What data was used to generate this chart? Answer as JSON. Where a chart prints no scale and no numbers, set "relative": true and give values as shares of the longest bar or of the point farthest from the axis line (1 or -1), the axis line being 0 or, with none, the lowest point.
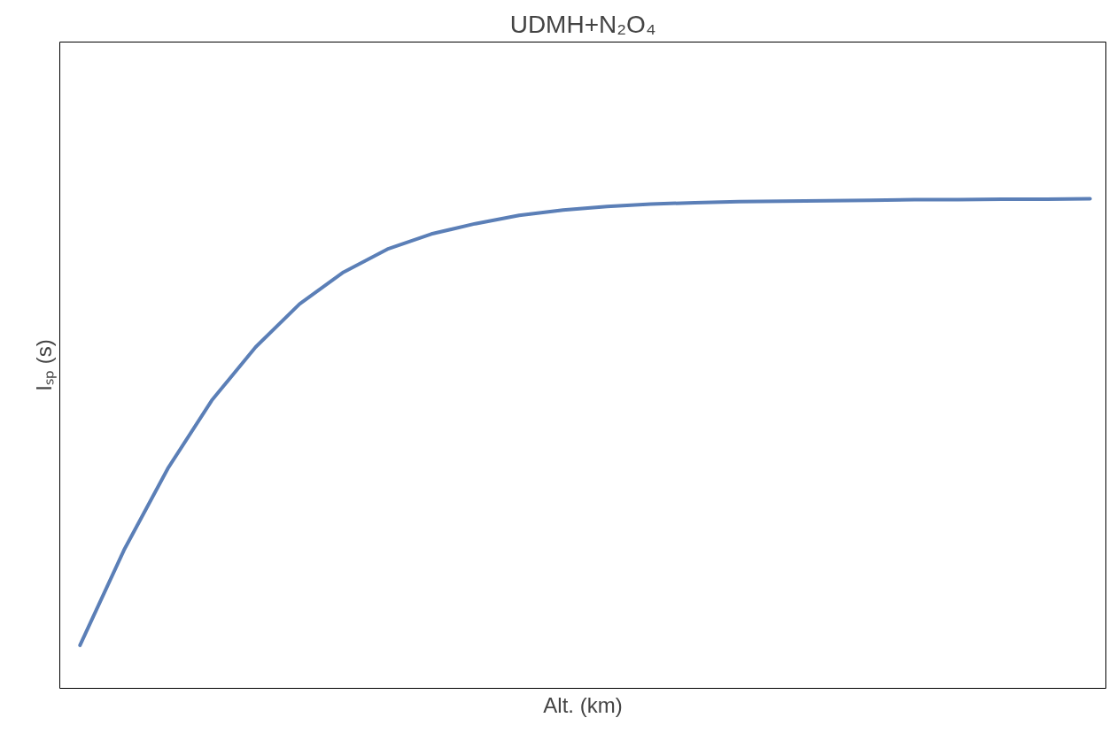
{
  "chart_data": {
    "type": "line",
    "title": "UDMH+N₂O₄",
    "xlabel": "Alt. (km)",
    "ylabel": "Iₛₚ (s)",
    "relative": true,
    "categories": [
      null,
      null,
      null,
      null,
      null,
      null,
      null,
      null,
      null,
      null,
      null,
      null,
      null,
      null,
      null,
      null,
      null,
      null,
      null,
      null,
      null,
      null,
      null,
      null
    ],
    "series": [
      {
        "color": "#5b7fb7",
        "values": [
          0.088,
          0.282,
          0.449,
          0.588,
          0.697,
          0.785,
          0.85,
          0.897,
          0.928,
          0.949,
          0.966,
          0.977,
          0.984,
          0.989,
          0.992,
          0.994,
          0.995,
          0.996,
          0.997,
          0.998,
          0.998,
          0.999,
          0.999,
          1
        ]
      }
    ]
  }
}
